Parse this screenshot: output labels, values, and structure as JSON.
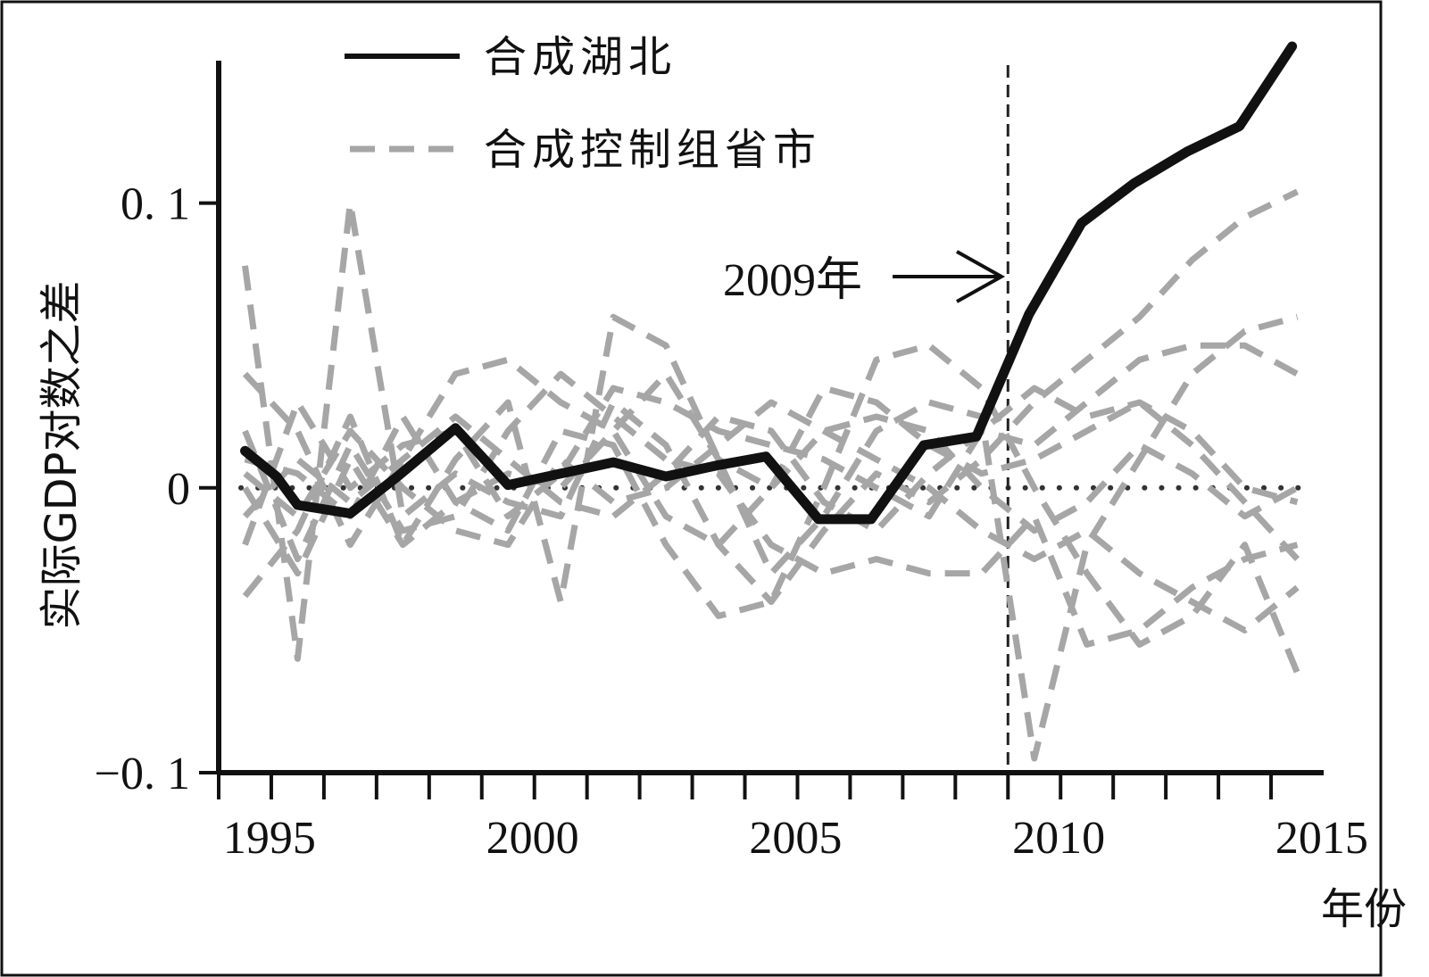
{
  "chart_data": {
    "type": "line",
    "xlabel": "年份",
    "ylabel": "实际GDP对数之差",
    "xlim": [
      1993.9,
      2014.9
    ],
    "ylim": [
      -0.1,
      0.15
    ],
    "x_ticks": [
      1995,
      2000,
      2005,
      2010,
      2015
    ],
    "x_tick_labels": [
      "1995",
      "2000",
      "2005",
      "2010",
      "2015"
    ],
    "y_ticks": [
      -0.1,
      0,
      0.1
    ],
    "y_tick_labels": [
      "−0. 1",
      "0",
      "0. 1"
    ],
    "legend": {
      "position": "top-left",
      "entries": [
        "合成湖北",
        "合成控制组省市"
      ]
    },
    "reference_line_y": 0,
    "event_x": 2008.9,
    "event_label": "2009年",
    "series": [
      {
        "name": "合成湖北",
        "style": "solid-black",
        "x": [
          1994.4,
          1995,
          1995.4,
          1996.4,
          1997.3,
          1998.4,
          1999.4,
          2000.4,
          2001.4,
          2002.4,
          2003.4,
          2004.3,
          2005.3,
          2006.3,
          2007.3,
          2008.3,
          2009.3,
          2010.3,
          2011.3,
          2012.3,
          2013.3,
          2014.3
        ],
        "y": [
          0.013,
          0.004,
          -0.006,
          -0.009,
          0.004,
          0.021,
          0.001,
          0.005,
          0.009,
          0.004,
          0.008,
          0.011,
          -0.011,
          -0.011,
          0.015,
          0.018,
          0.061,
          0.093,
          0.107,
          0.118,
          0.127,
          0.155
        ]
      },
      {
        "name": "合成控制组省市",
        "style": "dashed-gray",
        "x": [
          1994.4,
          1995.4,
          1996.4,
          1997.4,
          1998.4,
          1999.4,
          2000.4,
          2001.4,
          2002.4,
          2003.4,
          2004.4,
          2005.4,
          2006.4,
          2007.4,
          2008.4,
          2009.4,
          2010.4,
          2011.4,
          2012.4,
          2013.4,
          2014.4
        ],
        "y": [
          0.078,
          -0.06,
          0.1,
          -0.01,
          0.005,
          -0.005,
          -0.01,
          0.03,
          0.015,
          -0.02,
          -0.04,
          -0.015,
          0.005,
          -0.005,
          0.01,
          0.03,
          0.045,
          0.06,
          0.08,
          0.095,
          0.104
        ]
      },
      {
        "x": [
          1994.4,
          1995.4,
          1996.4,
          1997.4,
          1998.4,
          1999.4,
          2000.4,
          2001.4,
          2002.4,
          2003.4,
          2004.4,
          2005.4,
          2006.4,
          2007.4,
          2008.4,
          2009.4,
          2010.4,
          2011.4,
          2012.4,
          2013.4,
          2014.4
        ],
        "y": [
          -0.038,
          -0.015,
          0.025,
          -0.02,
          0.01,
          0.03,
          -0.04,
          0.06,
          0.05,
          0.01,
          -0.03,
          -0.01,
          0.02,
          0.03,
          0.025,
          -0.095,
          -0.02,
          0.01,
          0.04,
          0.055,
          0.06
        ]
      },
      {
        "x": [
          1994.4,
          1995.4,
          1996.4,
          1997.4,
          1998.4,
          1999.4,
          2000.4,
          2001.4,
          2002.4,
          2003.4,
          2004.4,
          2005.4,
          2006.4,
          2007.4,
          2008.4,
          2009.4,
          2010.4,
          2011.4,
          2012.4,
          2013.4,
          2014.4
        ],
        "y": [
          0.04,
          0.02,
          -0.02,
          0.01,
          0.04,
          0.045,
          0.03,
          0.02,
          -0.01,
          -0.02,
          0.0,
          0.035,
          0.03,
          0.015,
          0.005,
          0.01,
          0.02,
          0.03,
          0.015,
          -0.005,
          -0.025
        ]
      },
      {
        "x": [
          1994.4,
          1995.4,
          1996.4,
          1997.4,
          1998.4,
          1999.4,
          2000.4,
          2001.4,
          2002.4,
          2003.4,
          2004.4,
          2005.4,
          2006.4,
          2007.4,
          2008.4,
          2009.4,
          2010.4,
          2011.4,
          2012.4,
          2013.4,
          2014.4
        ],
        "y": [
          0.02,
          -0.025,
          0.015,
          -0.015,
          -0.01,
          0.02,
          0.04,
          0.025,
          0.01,
          0.005,
          -0.02,
          -0.03,
          -0.025,
          -0.03,
          -0.03,
          -0.01,
          -0.055,
          -0.05,
          -0.035,
          -0.025,
          -0.02
        ]
      },
      {
        "x": [
          1994.4,
          1995.4,
          1996.4,
          1997.4,
          1998.4,
          1999.4,
          2000.4,
          2001.4,
          2002.4,
          2003.4,
          2004.4,
          2005.4,
          2006.4,
          2007.4,
          2008.4,
          2009.4,
          2010.4,
          2011.4,
          2012.4,
          2013.4,
          2014.4
        ],
        "y": [
          0.01,
          0.005,
          -0.01,
          0.025,
          -0.005,
          -0.015,
          0.02,
          0.015,
          -0.02,
          -0.045,
          -0.04,
          0.0,
          0.045,
          0.05,
          0.035,
          0.0,
          -0.03,
          -0.055,
          -0.045,
          -0.02,
          -0.065
        ]
      },
      {
        "x": [
          1994.4,
          1995.4,
          1996.4,
          1997.4,
          1998.4,
          1999.4,
          2000.4,
          2001.4,
          2002.4,
          2003.4,
          2004.4,
          2005.4,
          2006.4,
          2007.4,
          2008.4,
          2009.4,
          2010.4,
          2011.4,
          2012.4,
          2013.4,
          2014.4
        ],
        "y": [
          -0.02,
          0.03,
          0.0,
          0.015,
          0.02,
          -0.01,
          0.005,
          0.035,
          0.03,
          0.02,
          0.015,
          0.01,
          0.0,
          -0.01,
          0.02,
          0.035,
          0.025,
          0.03,
          0.02,
          0.0,
          -0.005
        ]
      },
      {
        "x": [
          1994.4,
          1995.4,
          1996.4,
          1997.4,
          1998.4,
          1999.4,
          2000.4,
          2001.4,
          2002.4,
          2003.4,
          2004.4,
          2005.4,
          2006.4,
          2007.4,
          2008.4,
          2009.4,
          2010.4,
          2011.4,
          2012.4,
          2013.4,
          2014.4
        ],
        "y": [
          0.005,
          -0.01,
          0.02,
          0.0,
          -0.015,
          -0.02,
          0.01,
          -0.005,
          0.0,
          0.015,
          0.03,
          0.02,
          0.01,
          0.0,
          -0.015,
          -0.025,
          -0.015,
          -0.03,
          -0.04,
          -0.05,
          -0.035
        ]
      },
      {
        "x": [
          1994.4,
          1995.4,
          1996.4,
          1997.4,
          1998.4,
          1999.4,
          2000.4,
          2001.4,
          2002.4,
          2003.4,
          2004.4,
          2005.4,
          2006.4,
          2007.4,
          2008.4,
          2009.4,
          2010.4,
          2011.4,
          2012.4,
          2013.4,
          2014.4
        ],
        "y": [
          -0.01,
          0.01,
          -0.005,
          0.01,
          0.025,
          0.01,
          -0.005,
          -0.01,
          0.005,
          0.025,
          0.02,
          -0.005,
          -0.015,
          0.005,
          0.02,
          0.015,
          0.03,
          0.045,
          0.05,
          0.05,
          0.04
        ]
      },
      {
        "x": [
          1994.4,
          1995.4,
          1996.4,
          1997.4,
          1998.4,
          1999.4,
          2000.4,
          2001.4,
          2002.4,
          2003.4,
          2004.4,
          2005.4,
          2006.4,
          2007.4,
          2008.4,
          2009.4,
          2010.4,
          2011.4,
          2012.4,
          2013.4,
          2014.4
        ],
        "y": [
          0.0,
          -0.03,
          0.01,
          -0.02,
          -0.005,
          0.005,
          0.0,
          0.02,
          0.04,
          0.01,
          0.0,
          0.02,
          0.025,
          0.02,
          0.0,
          -0.015,
          -0.005,
          0.015,
          0.005,
          -0.01,
          0.0
        ]
      }
    ]
  }
}
